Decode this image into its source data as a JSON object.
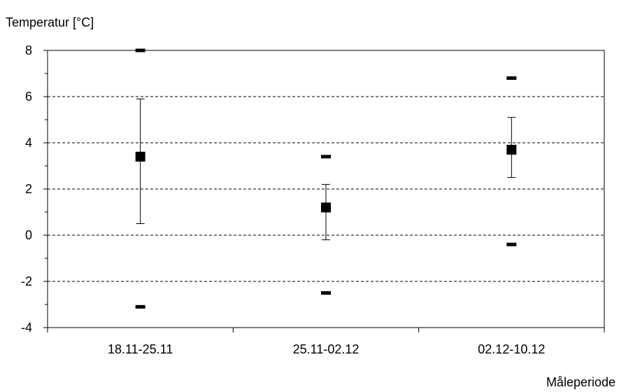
{
  "chart_data": {
    "type": "scatter",
    "ylabel": "Temperatur [°C]",
    "xlabel": "Måleperiode",
    "categories": [
      "18.11-25.11",
      "25.11-02.12",
      "02.12-10.12"
    ],
    "ylim": [
      -4,
      8
    ],
    "yticks": [
      -4,
      -2,
      0,
      2,
      4,
      6,
      8
    ],
    "grid": "horizontal dashed",
    "series": [
      {
        "marker": "square",
        "values": [
          3.4,
          1.2,
          3.7
        ]
      },
      {
        "marker": "dash",
        "values": [
          8.0,
          3.4,
          6.8
        ]
      },
      {
        "marker": "dash",
        "values": [
          -3.1,
          -2.5,
          -0.4
        ]
      }
    ],
    "error_bars": [
      {
        "low": 0.5,
        "high": 5.9
      },
      {
        "low": -0.2,
        "high": 2.2
      },
      {
        "low": 2.5,
        "high": 5.1
      }
    ]
  }
}
